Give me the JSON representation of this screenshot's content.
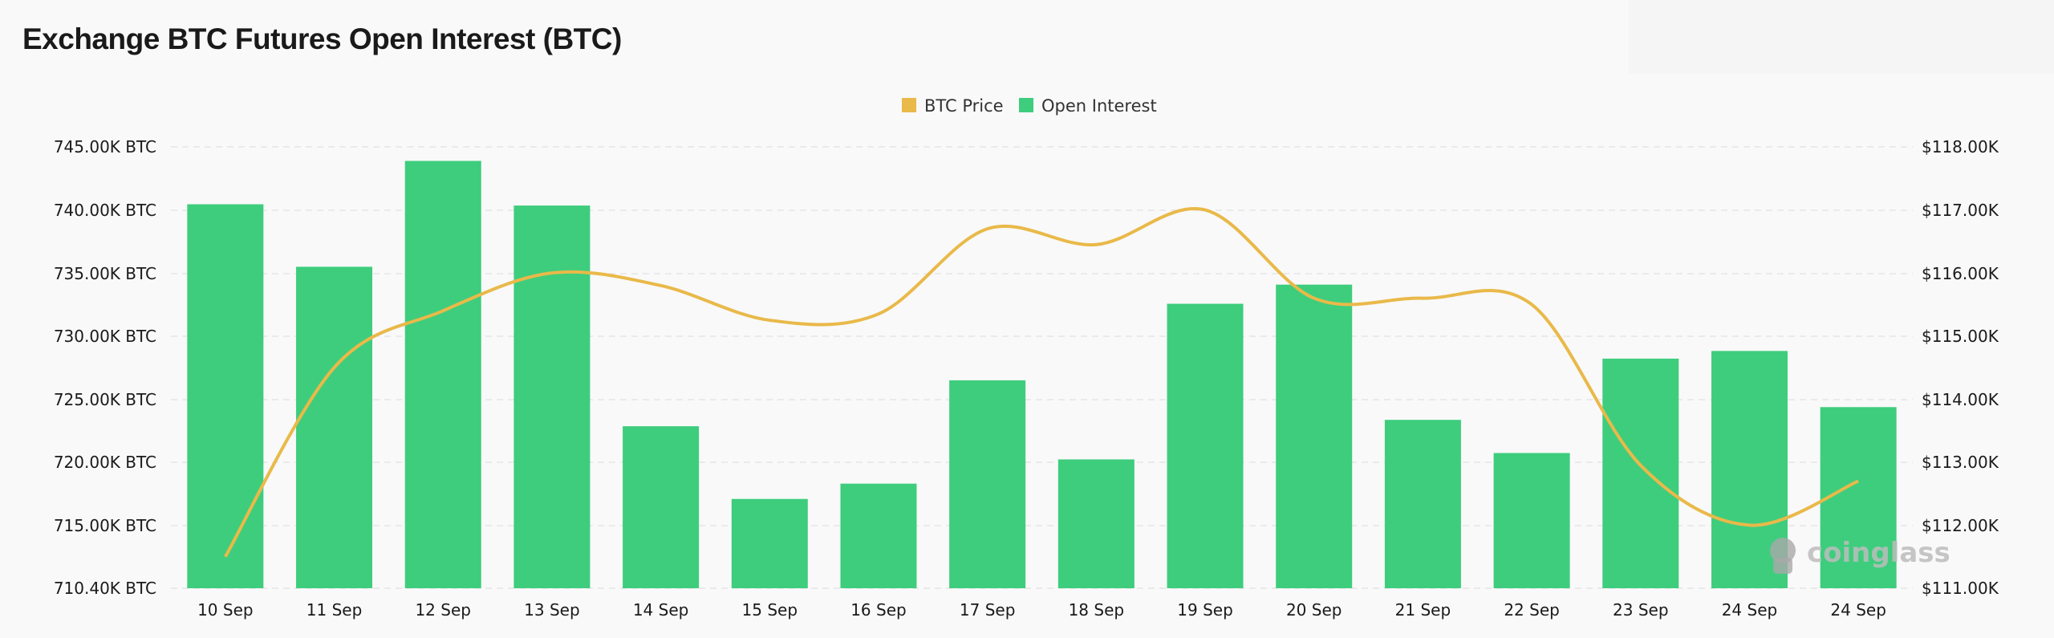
{
  "title": "Exchange BTC Futures Open Interest (BTC)",
  "watermark": "coinglass",
  "chart_data": {
    "type": "bar+line",
    "title": "Exchange BTC Futures Open Interest (BTC)",
    "categories": [
      "10 Sep",
      "11 Sep",
      "12 Sep",
      "13 Sep",
      "14 Sep",
      "15 Sep",
      "16 Sep",
      "17 Sep",
      "18 Sep",
      "19 Sep",
      "20 Sep",
      "21 Sep",
      "22 Sep",
      "23 Sep",
      "24 Sep",
      "24 Sep"
    ],
    "legend_position": "top-center",
    "grid": true,
    "series": [
      {
        "name": "BTC Price",
        "type": "line",
        "axis": "right",
        "color": "#e9b949",
        "values": [
          111.5,
          114.5,
          115.4,
          116.0,
          115.8,
          115.25,
          115.35,
          116.7,
          116.45,
          117.0,
          115.6,
          115.6,
          115.5,
          112.95,
          112.0,
          112.7
        ]
      },
      {
        "name": "Open Interest",
        "type": "bar",
        "axis": "left",
        "color": "#3ecd7d",
        "values": [
          740.5,
          735.6,
          743.9,
          740.4,
          723.1,
          717.4,
          718.6,
          726.7,
          720.5,
          732.7,
          734.2,
          723.6,
          721.0,
          728.4,
          729.0,
          724.6
        ]
      }
    ],
    "y_left": {
      "unit": "K BTC",
      "range": [
        710.4,
        745.0
      ],
      "tick_labels": [
        "745.00K BTC",
        "740.00K BTC",
        "735.00K BTC",
        "730.00K BTC",
        "725.00K BTC",
        "720.00K BTC",
        "715.00K BTC",
        "710.40K BTC"
      ]
    },
    "y_right": {
      "unit": "$K",
      "range": [
        111.0,
        118.0
      ],
      "tick_labels": [
        "$118.00K",
        "$117.00K",
        "$116.00K",
        "$115.00K",
        "$114.00K",
        "$113.00K",
        "$112.00K",
        "$111.00K"
      ]
    }
  }
}
